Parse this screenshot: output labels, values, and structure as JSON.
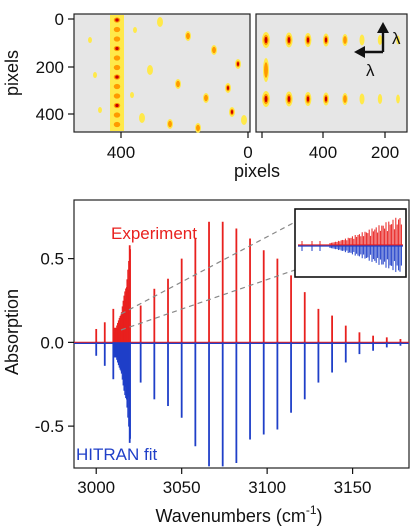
{
  "chart_data": [
    {
      "type": "heatmap",
      "panel": "left-detector-image",
      "ylabel": "pixels",
      "yticks": [
        "0",
        "200",
        "400"
      ],
      "xticks": [
        "400",
        "0"
      ],
      "colormap": [
        "#e8e8e8",
        "#ffe94a",
        "#ff9a00",
        "#c80000"
      ],
      "background": "#e8e8e8"
    },
    {
      "type": "heatmap",
      "panel": "right-detector-image",
      "xlabel": "pixels",
      "xticks": [
        "0",
        "400",
        "200"
      ],
      "axis_indicator": {
        "vertical": "λ",
        "horizontal": "λ"
      },
      "background": "#e8e8e8"
    },
    {
      "type": "line",
      "panel": "absorption-spectrum",
      "xlabel": "Wavenumbers (cm",
      "xlabel_superscript": "-1",
      "xlabel_close": ")",
      "ylabel": "Absorption",
      "xlim": [
        2987,
        3183
      ],
      "ylim": [
        -0.75,
        0.85
      ],
      "xticks": [
        3000,
        3050,
        3100,
        3150
      ],
      "yticks": [
        0.5,
        0.0,
        -0.5
      ],
      "ytick_labels": [
        "0.5",
        "0.0",
        "-0.5"
      ],
      "series": [
        {
          "name": "Experiment",
          "color": "#e8201e",
          "lines_x": [
            3000,
            3005,
            3010,
            3026,
            3034,
            3042,
            3050,
            3058,
            3066,
            3074,
            3082,
            3090,
            3098,
            3106,
            3114,
            3122,
            3130,
            3138,
            3146,
            3154,
            3162,
            3170,
            3178
          ],
          "lines_y": [
            0.08,
            0.12,
            0.2,
            0.22,
            0.32,
            0.38,
            0.5,
            0.62,
            0.72,
            0.72,
            0.68,
            0.62,
            0.55,
            0.5,
            0.4,
            0.3,
            0.2,
            0.16,
            0.1,
            0.06,
            0.04,
            0.03,
            0.02
          ],
          "q_branch_x_range": [
            3010,
            3020
          ],
          "q_branch_peak": 0.58
        },
        {
          "name": "HITRAN fit",
          "color": "#1f3fc8",
          "lines_x": [
            3000,
            3005,
            3010,
            3026,
            3034,
            3042,
            3050,
            3058,
            3066,
            3074,
            3082,
            3090,
            3098,
            3106,
            3114,
            3122,
            3130,
            3138,
            3146,
            3154,
            3162,
            3170,
            3178
          ],
          "lines_y": [
            -0.08,
            -0.14,
            -0.22,
            -0.24,
            -0.34,
            -0.38,
            -0.45,
            -0.62,
            -0.74,
            -0.74,
            -0.72,
            -0.58,
            -0.55,
            -0.52,
            -0.42,
            -0.34,
            -0.24,
            -0.18,
            -0.12,
            -0.07,
            -0.05,
            -0.03,
            -0.02
          ],
          "q_branch_x_range": [
            3010,
            3020
          ],
          "q_branch_peak": -0.6
        }
      ],
      "inset": {
        "shows": "Q-branch zoom",
        "border": "#111111"
      },
      "grid": false
    }
  ]
}
